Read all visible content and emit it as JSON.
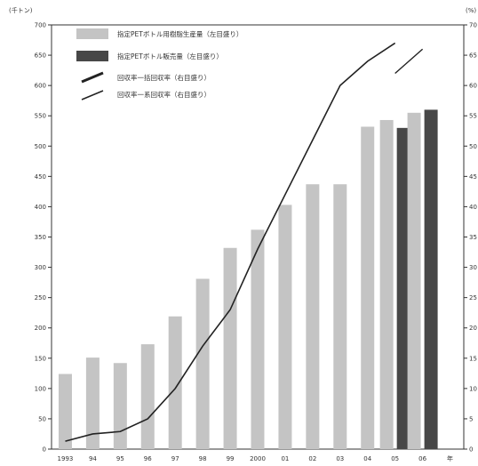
{
  "chart_data": {
    "type": "bar",
    "left_axis_label": "(千トン)",
    "right_axis_label": "(%)",
    "categories": [
      "1993",
      "94",
      "95",
      "96",
      "97",
      "98",
      "99",
      "2000",
      "01",
      "02",
      "03",
      "04",
      "05",
      "06",
      "年"
    ],
    "series": [
      {
        "name": "指定PETボトル用樹脂生産量（左目盛り）",
        "kind": "bar",
        "axis": "left",
        "color": "#c4c4c4",
        "values": [
          124,
          151,
          142,
          173,
          219,
          281,
          332,
          362,
          403,
          437,
          437,
          532,
          543,
          555,
          null
        ]
      },
      {
        "name": "指定PETボトル販売量（左目盛り）",
        "kind": "bar",
        "axis": "left",
        "color": "#474747",
        "values": [
          null,
          null,
          null,
          null,
          null,
          null,
          null,
          null,
          null,
          null,
          null,
          null,
          530,
          560,
          null
        ]
      },
      {
        "name": "回収率（右目盛り）",
        "kind": "line",
        "axis": "right",
        "color": "#222222",
        "values": [
          1.3,
          2.5,
          2.9,
          5.0,
          10.0,
          17.0,
          23.0,
          33.0,
          42.0,
          51.0,
          60.0,
          64.0,
          67.0,
          null,
          null
        ]
      },
      {
        "name": "回収率（右目盛り）2",
        "kind": "line",
        "axis": "right",
        "color": "#222222",
        "values": [
          null,
          null,
          null,
          null,
          null,
          null,
          null,
          null,
          null,
          null,
          null,
          null,
          62.0,
          66.0,
          null
        ]
      }
    ],
    "legend_labels": [
      "指定PETボトル用樹脂生産量（左目盛り）",
      "指定PETボトル販売量（左目盛り）",
      "回収率一括回収率（右目盛り）",
      "回収率一系回収率（右目盛り）"
    ],
    "y_left_ticks": [
      "0",
      "50",
      "100",
      "150",
      "200",
      "250",
      "300",
      "350",
      "400",
      "450",
      "500",
      "550",
      "600",
      "650",
      "700"
    ],
    "y_right_ticks": [
      "0",
      "5",
      "10",
      "15",
      "20",
      "25",
      "30",
      "35",
      "40",
      "45",
      "50",
      "55",
      "60",
      "65",
      "70"
    ],
    "ylim_left": [
      0,
      700
    ],
    "ylim_right": [
      0,
      70
    ],
    "legend_position": "top-left",
    "grid": false
  }
}
